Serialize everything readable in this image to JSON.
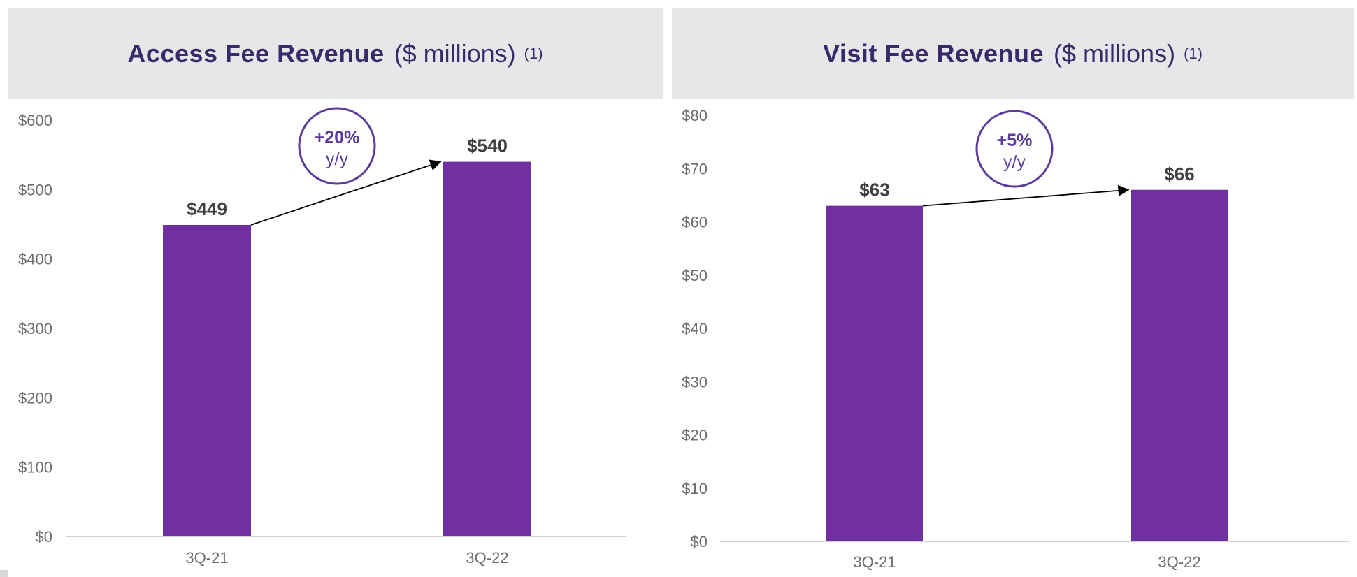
{
  "colors": {
    "bar": "#70309f",
    "header_bg": "#e6e7e8",
    "title": "#3b2a6b",
    "bubble": "#5b3c9a"
  },
  "chart_data": [
    {
      "type": "bar",
      "title": "Access Fee Revenue",
      "unit": "($ millions)",
      "note": "(1)",
      "categories": [
        "3Q-21",
        "3Q-22"
      ],
      "values": [
        449,
        540
      ],
      "value_labels": [
        "$449",
        "$540"
      ],
      "ylim": [
        0,
        600
      ],
      "yticks": [
        0,
        100,
        200,
        300,
        400,
        500,
        600
      ],
      "ytick_labels": [
        "$0",
        "$100",
        "$200",
        "$300",
        "$400",
        "$500",
        "$600"
      ],
      "growth": {
        "value": "+20%",
        "label": "y/y"
      },
      "xlabel": "",
      "ylabel": ""
    },
    {
      "type": "bar",
      "title": "Visit Fee Revenue",
      "unit": "($ millions)",
      "note": "(1)",
      "categories": [
        "3Q-21",
        "3Q-22"
      ],
      "values": [
        63,
        66
      ],
      "value_labels": [
        "$63",
        "$66"
      ],
      "ylim": [
        0,
        80
      ],
      "yticks": [
        0,
        10,
        20,
        30,
        40,
        50,
        60,
        70,
        80
      ],
      "ytick_labels": [
        "$0",
        "$10",
        "$20",
        "$30",
        "$40",
        "$50",
        "$60",
        "$70",
        "$80"
      ],
      "growth": {
        "value": "+5%",
        "label": "y/y"
      },
      "xlabel": "",
      "ylabel": ""
    }
  ]
}
